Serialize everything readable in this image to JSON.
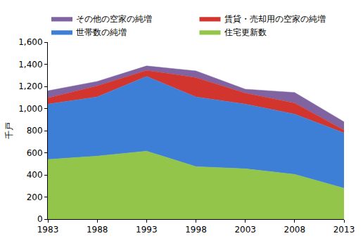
{
  "chart_data": {
    "type": "area",
    "stacked": true,
    "y_label": "千戸",
    "x": [
      1983,
      1988,
      1993,
      1998,
      2003,
      2008,
      2013
    ],
    "xlim": [
      1983,
      2013
    ],
    "xticks": [
      1983,
      1988,
      1993,
      1998,
      2003,
      2008,
      2013
    ],
    "ylim": [
      0,
      1600
    ],
    "yticks": [
      0,
      200,
      400,
      600,
      800,
      {
        "value": 1000,
        "label": "1,000"
      },
      {
        "value": 1200,
        "label": "1,200"
      },
      {
        "value": 1400,
        "label": "1,400"
      },
      {
        "value": 1600,
        "label": "1,600"
      }
    ],
    "grid": false,
    "legend": "top",
    "series": [
      {
        "name": "住宅更新数",
        "color": "#92c54a",
        "values": [
          540,
          570,
          615,
          475,
          455,
          405,
          280
        ]
      },
      {
        "name": "世帯数の純増",
        "color": "#3d7fd6",
        "values": [
          500,
          535,
          675,
          630,
          585,
          545,
          500
        ]
      },
      {
        "name": "賃貸・売却用の空家の純増",
        "color": "#d2352e",
        "values": [
          55,
          100,
          55,
          175,
          100,
          100,
          25
        ]
      },
      {
        "name": "その他の空家の純増",
        "color": "#8064a2",
        "values": [
          65,
          40,
          40,
          60,
          35,
          95,
          75
        ]
      }
    ]
  }
}
